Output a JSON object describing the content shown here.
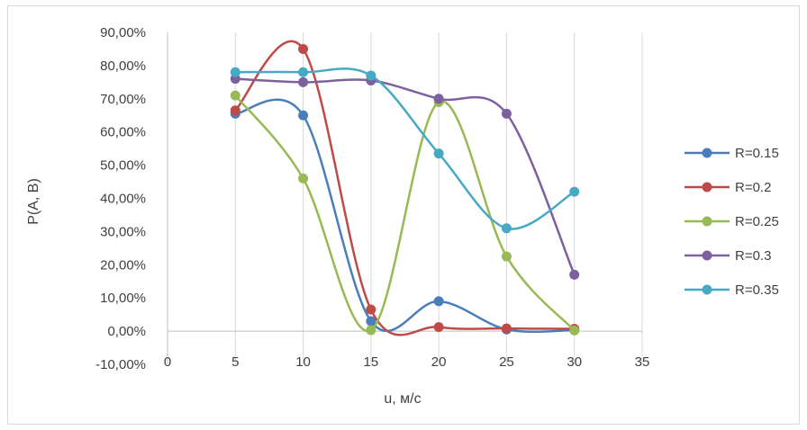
{
  "chart_data": {
    "type": "line",
    "smooth": true,
    "title": "",
    "xlabel": "u, м/с",
    "ylabel": "P(A, B)",
    "xlim": [
      0,
      35
    ],
    "xticks": [
      0,
      5,
      10,
      15,
      20,
      25,
      30,
      35
    ],
    "ylim": [
      -10,
      90
    ],
    "yticks": [
      -10,
      0,
      10,
      20,
      30,
      40,
      50,
      60,
      70,
      80,
      90
    ],
    "ytick_labels": [
      "-10,00%",
      "0,00%",
      "10,00%",
      "20,00%",
      "30,00%",
      "40,00%",
      "50,00%",
      "60,00%",
      "70,00%",
      "80,00%",
      "90,00%"
    ],
    "grid": "vertical",
    "legend": "right",
    "x": [
      5,
      10,
      15,
      20,
      25,
      30
    ],
    "series": [
      {
        "name": "R=0.15",
        "color": "#4a7ebb",
        "values": [
          65.5,
          65.0,
          3.0,
          9.0,
          0.5,
          0.3
        ]
      },
      {
        "name": "R=0.2",
        "color": "#be4b48",
        "values": [
          66.5,
          85.0,
          6.5,
          1.2,
          0.8,
          0.7
        ]
      },
      {
        "name": "R=0.25",
        "color": "#98b954",
        "values": [
          71.0,
          46.0,
          0.3,
          69.0,
          22.5,
          0.2
        ]
      },
      {
        "name": "R=0.3",
        "color": "#7d60a0",
        "values": [
          76.0,
          75.0,
          75.5,
          70.0,
          65.5,
          17.0
        ]
      },
      {
        "name": "R=0.35",
        "color": "#46aac5",
        "values": [
          78.0,
          78.0,
          77.0,
          53.5,
          31.0,
          42.0
        ]
      }
    ]
  }
}
